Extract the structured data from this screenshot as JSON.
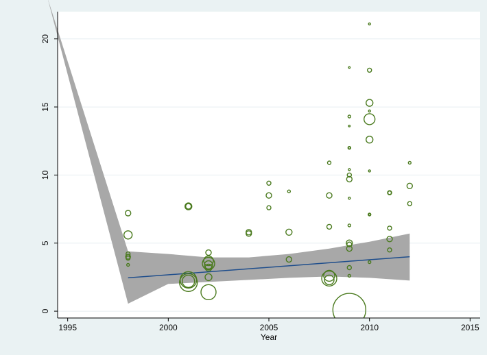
{
  "chart_data": {
    "type": "scatter",
    "title": "",
    "xlabel": "Year",
    "ylabel": "",
    "xlim": [
      1994.5,
      2015.5
    ],
    "ylim": [
      -0.5,
      22
    ],
    "xticks": [
      1995,
      2000,
      2005,
      2010,
      2015
    ],
    "yticks": [
      0,
      5,
      10,
      15,
      20
    ],
    "grid": "horizontal",
    "colors": {
      "background": "#eaf2f3",
      "plot_area": "#ffffff",
      "points": "#4a7a1e",
      "fit_line": "#1f4e8c",
      "ci_band": "#a8a8a8",
      "grid": "#e6eef0"
    },
    "points": [
      {
        "x": 1998,
        "y": 7.2,
        "w": 4
      },
      {
        "x": 1998,
        "y": 5.6,
        "w": 6
      },
      {
        "x": 1998,
        "y": 4.2,
        "w": 3
      },
      {
        "x": 1998,
        "y": 4.0,
        "w": 3.5
      },
      {
        "x": 1998,
        "y": 3.9,
        "w": 3
      },
      {
        "x": 1998,
        "y": 3.4,
        "w": 2
      },
      {
        "x": 2001,
        "y": 7.7,
        "w": 5
      },
      {
        "x": 2001,
        "y": 7.7,
        "w": 4
      },
      {
        "x": 2001,
        "y": 2.3,
        "w": 12
      },
      {
        "x": 2001,
        "y": 2.1,
        "w": 13
      },
      {
        "x": 2001,
        "y": 2.2,
        "w": 9
      },
      {
        "x": 2002,
        "y": 4.3,
        "w": 4
      },
      {
        "x": 2002,
        "y": 3.7,
        "w": 7
      },
      {
        "x": 2002,
        "y": 3.5,
        "w": 9
      },
      {
        "x": 2002,
        "y": 3.4,
        "w": 6
      },
      {
        "x": 2002,
        "y": 3.2,
        "w": 5
      },
      {
        "x": 2002,
        "y": 2.5,
        "w": 5
      },
      {
        "x": 2002,
        "y": 1.4,
        "w": 11
      },
      {
        "x": 2004,
        "y": 5.8,
        "w": 4
      },
      {
        "x": 2004,
        "y": 5.7,
        "w": 4
      },
      {
        "x": 2005,
        "y": 9.4,
        "w": 3
      },
      {
        "x": 2005,
        "y": 8.5,
        "w": 4
      },
      {
        "x": 2005,
        "y": 7.6,
        "w": 3
      },
      {
        "x": 2006,
        "y": 8.8,
        "w": 2
      },
      {
        "x": 2006,
        "y": 5.8,
        "w": 4.5
      },
      {
        "x": 2006,
        "y": 3.8,
        "w": 4
      },
      {
        "x": 2008,
        "y": 10.9,
        "w": 2.5
      },
      {
        "x": 2008,
        "y": 8.5,
        "w": 4
      },
      {
        "x": 2008,
        "y": 6.2,
        "w": 3.5
      },
      {
        "x": 2008,
        "y": 2.6,
        "w": 8
      },
      {
        "x": 2008,
        "y": 2.4,
        "w": 11
      },
      {
        "x": 2008,
        "y": 2.3,
        "w": 7
      },
      {
        "x": 2009,
        "y": 17.9,
        "w": 1
      },
      {
        "x": 2009,
        "y": 14.3,
        "w": 2
      },
      {
        "x": 2009,
        "y": 13.6,
        "w": 1
      },
      {
        "x": 2009,
        "y": 12.0,
        "w": 2
      },
      {
        "x": 2009,
        "y": 12.0,
        "w": 1.5
      },
      {
        "x": 2009,
        "y": 10.4,
        "w": 1.5
      },
      {
        "x": 2009,
        "y": 10.0,
        "w": 3
      },
      {
        "x": 2009,
        "y": 9.7,
        "w": 4
      },
      {
        "x": 2009,
        "y": 8.3,
        "w": 1.5
      },
      {
        "x": 2009,
        "y": 6.3,
        "w": 2
      },
      {
        "x": 2009,
        "y": 5.0,
        "w": 4.5
      },
      {
        "x": 2009,
        "y": 4.9,
        "w": 3.5
      },
      {
        "x": 2009,
        "y": 4.6,
        "w": 4
      },
      {
        "x": 2009,
        "y": 3.2,
        "w": 3
      },
      {
        "x": 2009,
        "y": 2.6,
        "w": 2
      },
      {
        "x": 2009,
        "y": 0.1,
        "w": 24
      },
      {
        "x": 2010,
        "y": 21.1,
        "w": 1.5
      },
      {
        "x": 2010,
        "y": 17.7,
        "w": 3
      },
      {
        "x": 2010,
        "y": 15.3,
        "w": 5
      },
      {
        "x": 2010,
        "y": 14.7,
        "w": 1.5
      },
      {
        "x": 2010,
        "y": 14.1,
        "w": 8
      },
      {
        "x": 2010,
        "y": 12.6,
        "w": 5
      },
      {
        "x": 2010,
        "y": 10.3,
        "w": 1.5
      },
      {
        "x": 2010,
        "y": 7.1,
        "w": 2
      },
      {
        "x": 2010,
        "y": 7.1,
        "w": 1.5
      },
      {
        "x": 2010,
        "y": 3.6,
        "w": 2
      },
      {
        "x": 2011,
        "y": 8.7,
        "w": 3
      },
      {
        "x": 2011,
        "y": 8.7,
        "w": 2.5
      },
      {
        "x": 2011,
        "y": 6.1,
        "w": 3
      },
      {
        "x": 2011,
        "y": 5.3,
        "w": 4
      },
      {
        "x": 2011,
        "y": 4.5,
        "w": 3
      },
      {
        "x": 2012,
        "y": 10.9,
        "w": 2
      },
      {
        "x": 2012,
        "y": 9.2,
        "w": 4
      },
      {
        "x": 2012,
        "y": 7.9,
        "w": 3
      }
    ],
    "fit_line": {
      "x": [
        1998,
        2012
      ],
      "y": [
        2.45,
        4.0
      ]
    },
    "ci_band": {
      "x": [
        1994.0,
        1998,
        2000,
        2002,
        2004,
        2006,
        2008,
        2010,
        2012
      ],
      "lower": [
        23.0,
        0.55,
        2.0,
        2.15,
        2.3,
        2.45,
        2.55,
        2.45,
        2.25
      ],
      "upper": [
        23.0,
        4.4,
        4.2,
        3.95,
        3.95,
        4.2,
        4.6,
        5.1,
        5.7
      ]
    }
  }
}
